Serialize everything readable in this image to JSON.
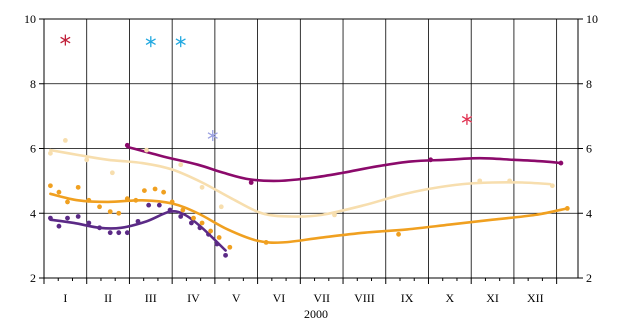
{
  "chart_data": {
    "type": "scatter",
    "xlabel": "2000",
    "ylabel": "",
    "title": "",
    "xlim": [
      0,
      12.5
    ],
    "ylim": [
      2,
      10
    ],
    "grid": true,
    "y_ticks": [
      2,
      4,
      6,
      8,
      10
    ],
    "month_labels": [
      "I",
      "II",
      "III",
      "IV",
      "V",
      "VI",
      "VII",
      "VIII",
      "IX",
      "X",
      "XI",
      "XII"
    ],
    "series": [
      {
        "color": "#5b2a86",
        "points": [
          [
            0.15,
            3.85
          ],
          [
            0.35,
            3.6
          ],
          [
            0.55,
            3.85
          ],
          [
            0.8,
            3.9
          ],
          [
            1.05,
            3.7
          ],
          [
            1.3,
            3.55
          ],
          [
            1.55,
            3.4
          ],
          [
            1.75,
            3.4
          ],
          [
            1.95,
            3.4
          ],
          [
            2.2,
            3.75
          ],
          [
            2.45,
            4.25
          ],
          [
            2.7,
            4.25
          ],
          [
            2.95,
            4.1
          ],
          [
            3.2,
            3.9
          ],
          [
            3.45,
            3.7
          ],
          [
            3.65,
            3.55
          ],
          [
            3.85,
            3.35
          ],
          [
            4.05,
            3.05
          ],
          [
            4.25,
            2.7
          ]
        ],
        "trend": [
          [
            0.15,
            3.8
          ],
          [
            0.7,
            3.7
          ],
          [
            1.3,
            3.55
          ],
          [
            1.8,
            3.55
          ],
          [
            2.4,
            3.75
          ],
          [
            2.95,
            4.05
          ],
          [
            3.3,
            3.95
          ],
          [
            3.7,
            3.55
          ],
          [
            4.25,
            2.85
          ]
        ],
        "outliers": []
      },
      {
        "color": "#f0a020",
        "points": [
          [
            0.15,
            4.85
          ],
          [
            0.35,
            4.65
          ],
          [
            0.55,
            4.35
          ],
          [
            0.8,
            4.8
          ],
          [
            1.05,
            4.4
          ],
          [
            1.3,
            4.2
          ],
          [
            1.55,
            4.05
          ],
          [
            1.75,
            4.0
          ],
          [
            1.95,
            4.45
          ],
          [
            2.15,
            4.4
          ],
          [
            2.35,
            4.7
          ],
          [
            2.6,
            4.75
          ],
          [
            2.8,
            4.65
          ],
          [
            3.0,
            4.35
          ],
          [
            3.25,
            4.1
          ],
          [
            3.5,
            3.85
          ],
          [
            3.7,
            3.7
          ],
          [
            3.9,
            3.45
          ],
          [
            4.1,
            3.25
          ],
          [
            4.35,
            2.95
          ],
          [
            5.2,
            3.1
          ],
          [
            8.3,
            3.35
          ],
          [
            12.25,
            4.15
          ]
        ],
        "trend": [
          [
            0.15,
            4.6
          ],
          [
            0.8,
            4.4
          ],
          [
            1.5,
            4.35
          ],
          [
            2.3,
            4.4
          ],
          [
            3.0,
            4.3
          ],
          [
            3.6,
            4.0
          ],
          [
            4.3,
            3.5
          ],
          [
            5.0,
            3.15
          ],
          [
            5.6,
            3.1
          ],
          [
            6.5,
            3.25
          ],
          [
            7.5,
            3.4
          ],
          [
            8.5,
            3.5
          ],
          [
            9.5,
            3.65
          ],
          [
            10.5,
            3.8
          ],
          [
            11.5,
            3.95
          ],
          [
            12.25,
            4.15
          ]
        ],
        "outliers": []
      },
      {
        "color": "#f7deae",
        "points": [
          [
            0.15,
            5.85
          ],
          [
            0.5,
            6.25
          ],
          [
            1.0,
            5.65
          ],
          [
            1.6,
            5.25
          ],
          [
            2.4,
            5.95
          ],
          [
            3.2,
            5.5
          ],
          [
            3.7,
            4.8
          ],
          [
            4.15,
            4.2
          ],
          [
            6.8,
            3.95
          ],
          [
            10.2,
            5.0
          ],
          [
            10.9,
            5.0
          ],
          [
            11.9,
            4.85
          ]
        ],
        "trend": [
          [
            0.15,
            5.95
          ],
          [
            0.8,
            5.8
          ],
          [
            1.5,
            5.65
          ],
          [
            2.3,
            5.55
          ],
          [
            3.0,
            5.35
          ],
          [
            3.7,
            4.95
          ],
          [
            4.4,
            4.45
          ],
          [
            5.1,
            4.0
          ],
          [
            5.8,
            3.9
          ],
          [
            6.5,
            3.95
          ],
          [
            7.5,
            4.25
          ],
          [
            8.3,
            4.55
          ],
          [
            9.0,
            4.75
          ],
          [
            9.8,
            4.9
          ],
          [
            10.5,
            4.95
          ],
          [
            11.2,
            4.95
          ],
          [
            11.85,
            4.9
          ]
        ],
        "outliers": []
      },
      {
        "color": "#8b0a6b",
        "points": [
          [
            1.95,
            6.1
          ],
          [
            4.85,
            4.95
          ],
          [
            9.05,
            5.65
          ],
          [
            12.1,
            5.55
          ]
        ],
        "trend": [
          [
            1.95,
            6.05
          ],
          [
            2.8,
            5.75
          ],
          [
            3.6,
            5.5
          ],
          [
            4.2,
            5.25
          ],
          [
            4.8,
            5.05
          ],
          [
            5.5,
            5.0
          ],
          [
            6.3,
            5.1
          ],
          [
            7.0,
            5.25
          ],
          [
            7.8,
            5.45
          ],
          [
            8.6,
            5.6
          ],
          [
            9.4,
            5.65
          ],
          [
            10.2,
            5.7
          ],
          [
            11.0,
            5.65
          ],
          [
            11.7,
            5.6
          ],
          [
            12.1,
            5.55
          ]
        ],
        "outliers": []
      }
    ],
    "asterisks": [
      {
        "x": 0.5,
        "y": 9.35,
        "color": "#c0203a"
      },
      {
        "x": 2.5,
        "y": 9.3,
        "color": "#20a8e0"
      },
      {
        "x": 3.2,
        "y": 9.3,
        "color": "#20a8e0"
      },
      {
        "x": 3.95,
        "y": 6.4,
        "color": "#9aa0e0"
      },
      {
        "x": 9.9,
        "y": 6.9,
        "color": "#e03050"
      }
    ]
  }
}
